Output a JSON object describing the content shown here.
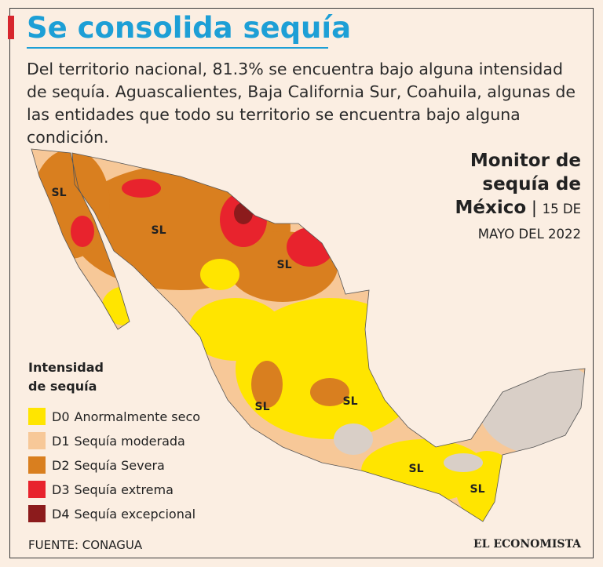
{
  "header": {
    "title": "Se consolida sequía",
    "description": "Del territorio nacional, 81.3% se encuentra bajo alguna intensidad de sequía. Aguascalientes, Baja California Sur, Coahuila, algunas de las entidades que todo su territorio se encuentra bajo alguna condición."
  },
  "monitor": {
    "title": "Monitor de sequía de México",
    "date": "15 DE MAYO DEL 2022"
  },
  "legend": {
    "title": "Intensidad de sequía",
    "items": [
      {
        "code": "D0",
        "label": "Anormalmente seco",
        "color": "#ffe500"
      },
      {
        "code": "D1",
        "label": "Sequía moderada",
        "color": "#f7c898"
      },
      {
        "code": "D2",
        "label": "Sequía Severa",
        "color": "#d97f1f"
      },
      {
        "code": "D3",
        "label": "Sequía extrema",
        "color": "#e8232d"
      },
      {
        "code": "D4",
        "label": "Sequía excepcional",
        "color": "#8c1b1c"
      }
    ]
  },
  "map": {
    "labels": [
      "SL",
      "SL",
      "SL",
      "SL",
      "SL",
      "SL",
      "SL"
    ]
  },
  "footer": {
    "source": "FUENTE: CONAGUA",
    "brand": "EL ECONOMISTA"
  }
}
